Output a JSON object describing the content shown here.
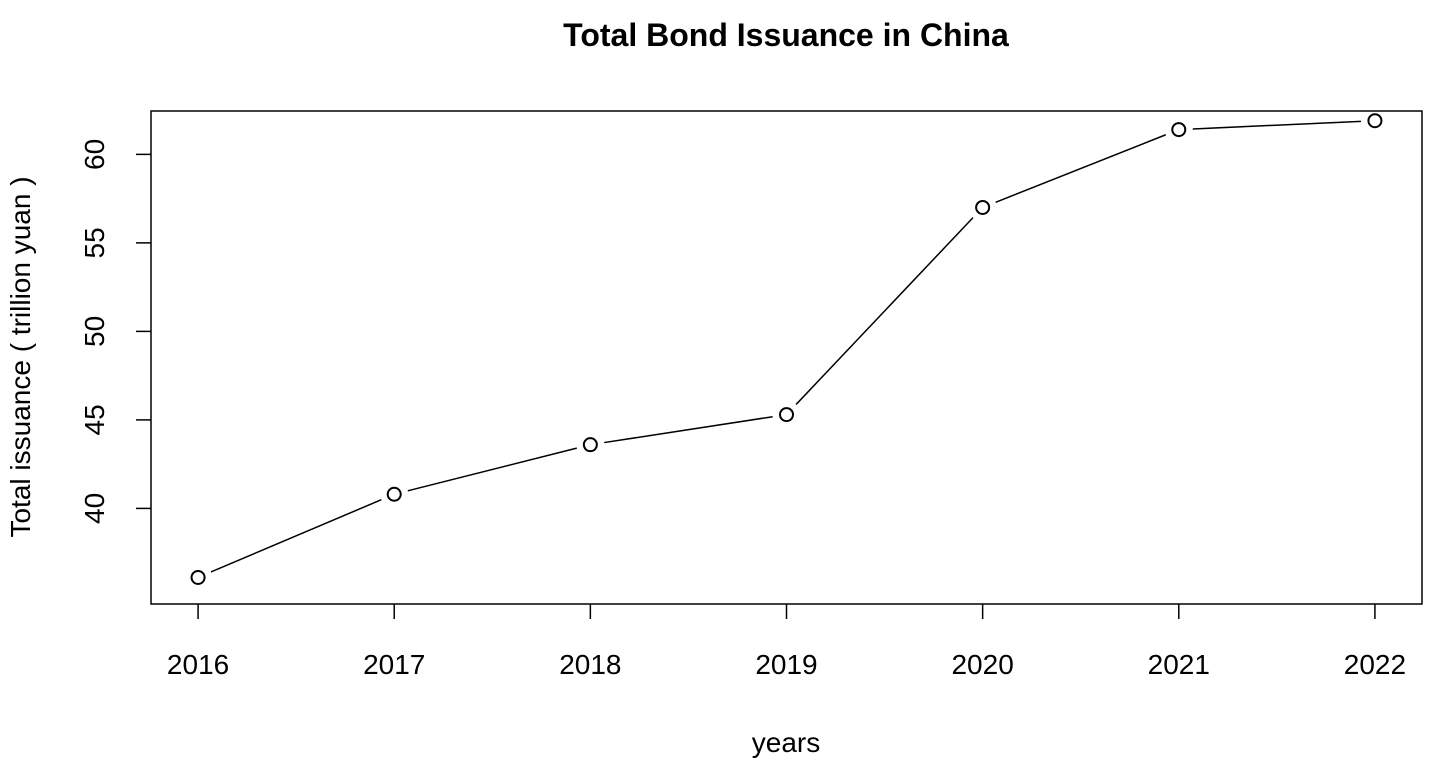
{
  "chart_data": {
    "type": "line",
    "title": "Total Bond Issuance in China",
    "xlabel": "years",
    "ylabel": "Total issuance ( trillion yuan )",
    "x": [
      2016,
      2017,
      2018,
      2019,
      2020,
      2021,
      2022
    ],
    "x_tick_labels": [
      "2016",
      "2017",
      "2018",
      "2019",
      "2020",
      "2021",
      "2022"
    ],
    "y_ticks": [
      40,
      45,
      50,
      55,
      60
    ],
    "y_tick_labels": [
      "40",
      "45",
      "50",
      "55",
      "60"
    ],
    "xlim": [
      2015.76,
      2022.24
    ],
    "ylim": [
      34.6,
      62.45
    ],
    "series": [
      {
        "values": [
          36.1,
          40.8,
          43.6,
          45.3,
          57.0,
          61.4,
          61.9
        ]
      }
    ],
    "markers": "open-circle",
    "grid": false,
    "legend": "none",
    "line_color": "#000000"
  }
}
